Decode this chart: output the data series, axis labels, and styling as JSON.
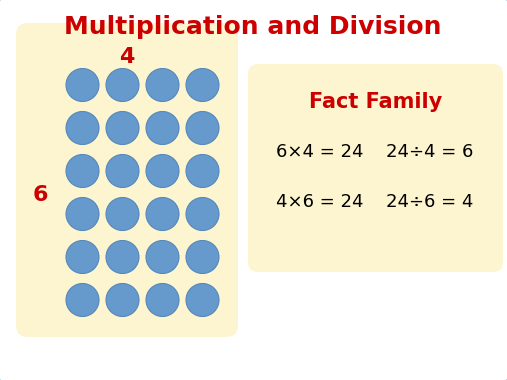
{
  "title": "Multiplication and Division",
  "title_color": "#cc0000",
  "title_fontsize": 18,
  "background_color": "#ffffff",
  "border_color": "#a8d0e0",
  "left_box_color": "#fdf5d0",
  "right_box_color": "#fdf5d0",
  "circle_color": "#6699cc",
  "circle_edge_color": "#5588bb",
  "rows": 6,
  "cols": 4,
  "label_4_text": "4",
  "label_6_text": "6",
  "label_color": "#cc0000",
  "label_fontsize": 16,
  "fact_family_title": "Fact Family",
  "fact_family_color": "#cc0000",
  "fact_family_fontsize": 15,
  "fact_line1_left": "6×4 = 24",
  "fact_line1_right": "24÷4 = 6",
  "fact_line2_left": "4×6 = 24",
  "fact_line2_right": "24÷6 = 4",
  "fact_fontsize": 13
}
